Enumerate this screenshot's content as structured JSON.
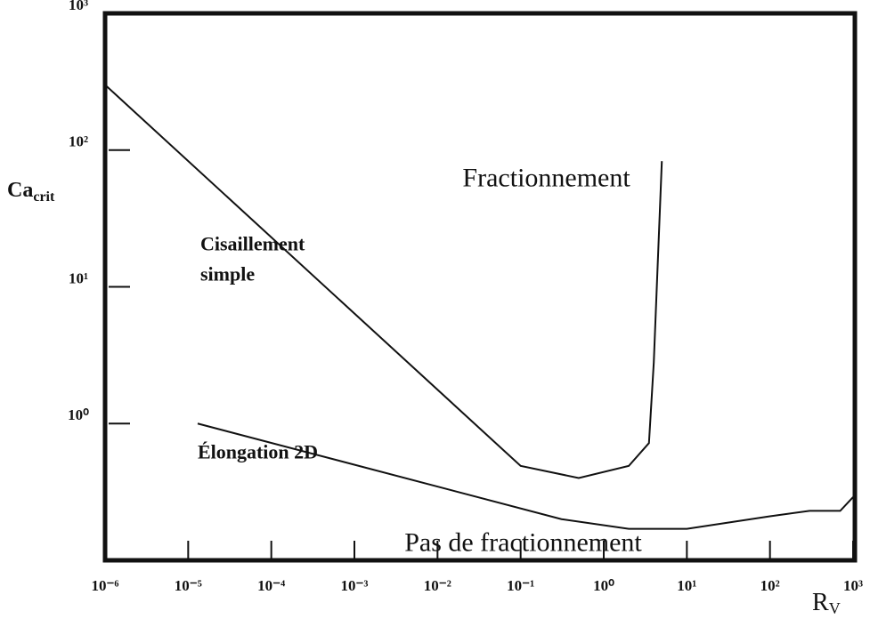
{
  "chart_data": {
    "type": "line",
    "x_label": {
      "text": "R",
      "subscript": "V"
    },
    "y_label": {
      "text": "Ca",
      "subscript": "crit"
    },
    "xscale": "log",
    "yscale": "log",
    "xlim": [
      1e-06,
      1000
    ],
    "ylim": [
      0.1,
      1000
    ],
    "xticks": [
      {
        "value": 1e-06,
        "label": "10⁻⁶"
      },
      {
        "value": 1e-05,
        "label": "10⁻⁵"
      },
      {
        "value": 0.0001,
        "label": "10⁻⁴"
      },
      {
        "value": 0.001,
        "label": "10⁻³"
      },
      {
        "value": 0.01,
        "label": "10⁻²"
      },
      {
        "value": 0.1,
        "label": "10⁻¹"
      },
      {
        "value": 1,
        "label": "10⁰"
      },
      {
        "value": 10,
        "label": "10¹"
      },
      {
        "value": 100,
        "label": "10²"
      },
      {
        "value": 1000,
        "label": "10³"
      }
    ],
    "yticks": [
      {
        "value": 1,
        "label": "10⁰"
      },
      {
        "value": 10,
        "label": "10¹"
      },
      {
        "value": 100,
        "label": "10²"
      },
      {
        "value": 1000,
        "label": "10³"
      }
    ],
    "series": [
      {
        "color": "#111111",
        "x": [
          1e-06,
          0.1,
          0.5,
          2,
          3.5,
          4,
          5
        ],
        "values": [
          300,
          0.49,
          0.4,
          0.49,
          0.72,
          2.8,
          83
        ]
      },
      {
        "color": "#111111",
        "x": [
          1.3e-05,
          0.31,
          2,
          10,
          100,
          300,
          700,
          1000
        ],
        "values": [
          1.0,
          0.2,
          0.17,
          0.17,
          0.21,
          0.23,
          0.23,
          0.29
        ]
      }
    ],
    "annotations": [
      {
        "text": "Fractionnement",
        "x": 0.02,
        "y": 60
      },
      {
        "text": "Pas de fractionnement",
        "x": 0.004,
        "y": 0.13
      },
      {
        "lines": [
          "Cisaillement",
          "simple"
        ],
        "x": 1.4e-05,
        "y": 20
      },
      {
        "text": "Élongation 2D",
        "x": 1.3e-05,
        "y": 0.6
      }
    ]
  }
}
